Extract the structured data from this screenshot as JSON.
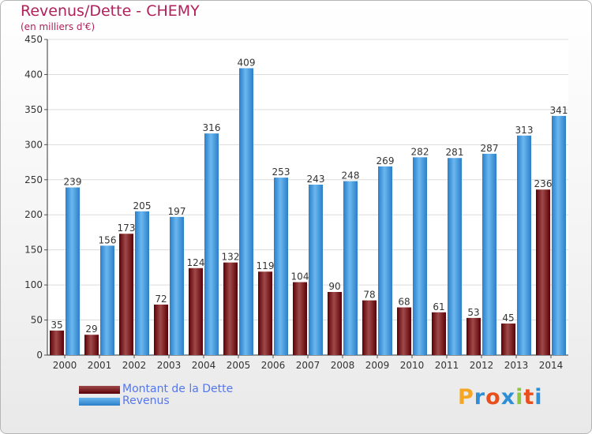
{
  "header": {
    "title": "Revenus/Dette - CHEMY",
    "subtitle": "(en milliers d'€)"
  },
  "legend": {
    "dette_label": "Montant de la Dette",
    "revenus_label": "Revenus"
  },
  "logo": {
    "letters": [
      "P",
      "r",
      "o",
      "x",
      "i",
      "t",
      "i"
    ],
    "colors": [
      "#f5a623",
      "#2e8fd6",
      "#e94f1d",
      "#2e8fd6",
      "#8dc63f",
      "#e94f1d",
      "#2e8fd6"
    ]
  },
  "colors": {
    "dette_dark": "#5a0006",
    "dette_light": "#a04a4a",
    "revenus_dark": "#2a7fc8",
    "revenus_light": "#6bb7f0",
    "title": "#b0205a",
    "legend_text": "#5577ee"
  },
  "chart_data": {
    "type": "bar",
    "title": "Revenus/Dette - CHEMY",
    "ylabel": "(en milliers d'€)",
    "xlabel": "",
    "ylim": [
      0,
      450
    ],
    "yticks": [
      0,
      50,
      100,
      150,
      200,
      250,
      300,
      350,
      400,
      450
    ],
    "grid": true,
    "categories": [
      "2000",
      "2001",
      "2002",
      "2003",
      "2004",
      "2005",
      "2006",
      "2007",
      "2008",
      "2009",
      "2010",
      "2011",
      "2012",
      "2013",
      "2014"
    ],
    "series": [
      {
        "name": "Montant de la Dette",
        "values": [
          35,
          29,
          173,
          72,
          124,
          132,
          119,
          104,
          90,
          78,
          68,
          61,
          53,
          45,
          236
        ]
      },
      {
        "name": "Revenus",
        "values": [
          239,
          156,
          205,
          197,
          316,
          409,
          253,
          243,
          248,
          269,
          282,
          281,
          287,
          313,
          341
        ]
      }
    ]
  }
}
